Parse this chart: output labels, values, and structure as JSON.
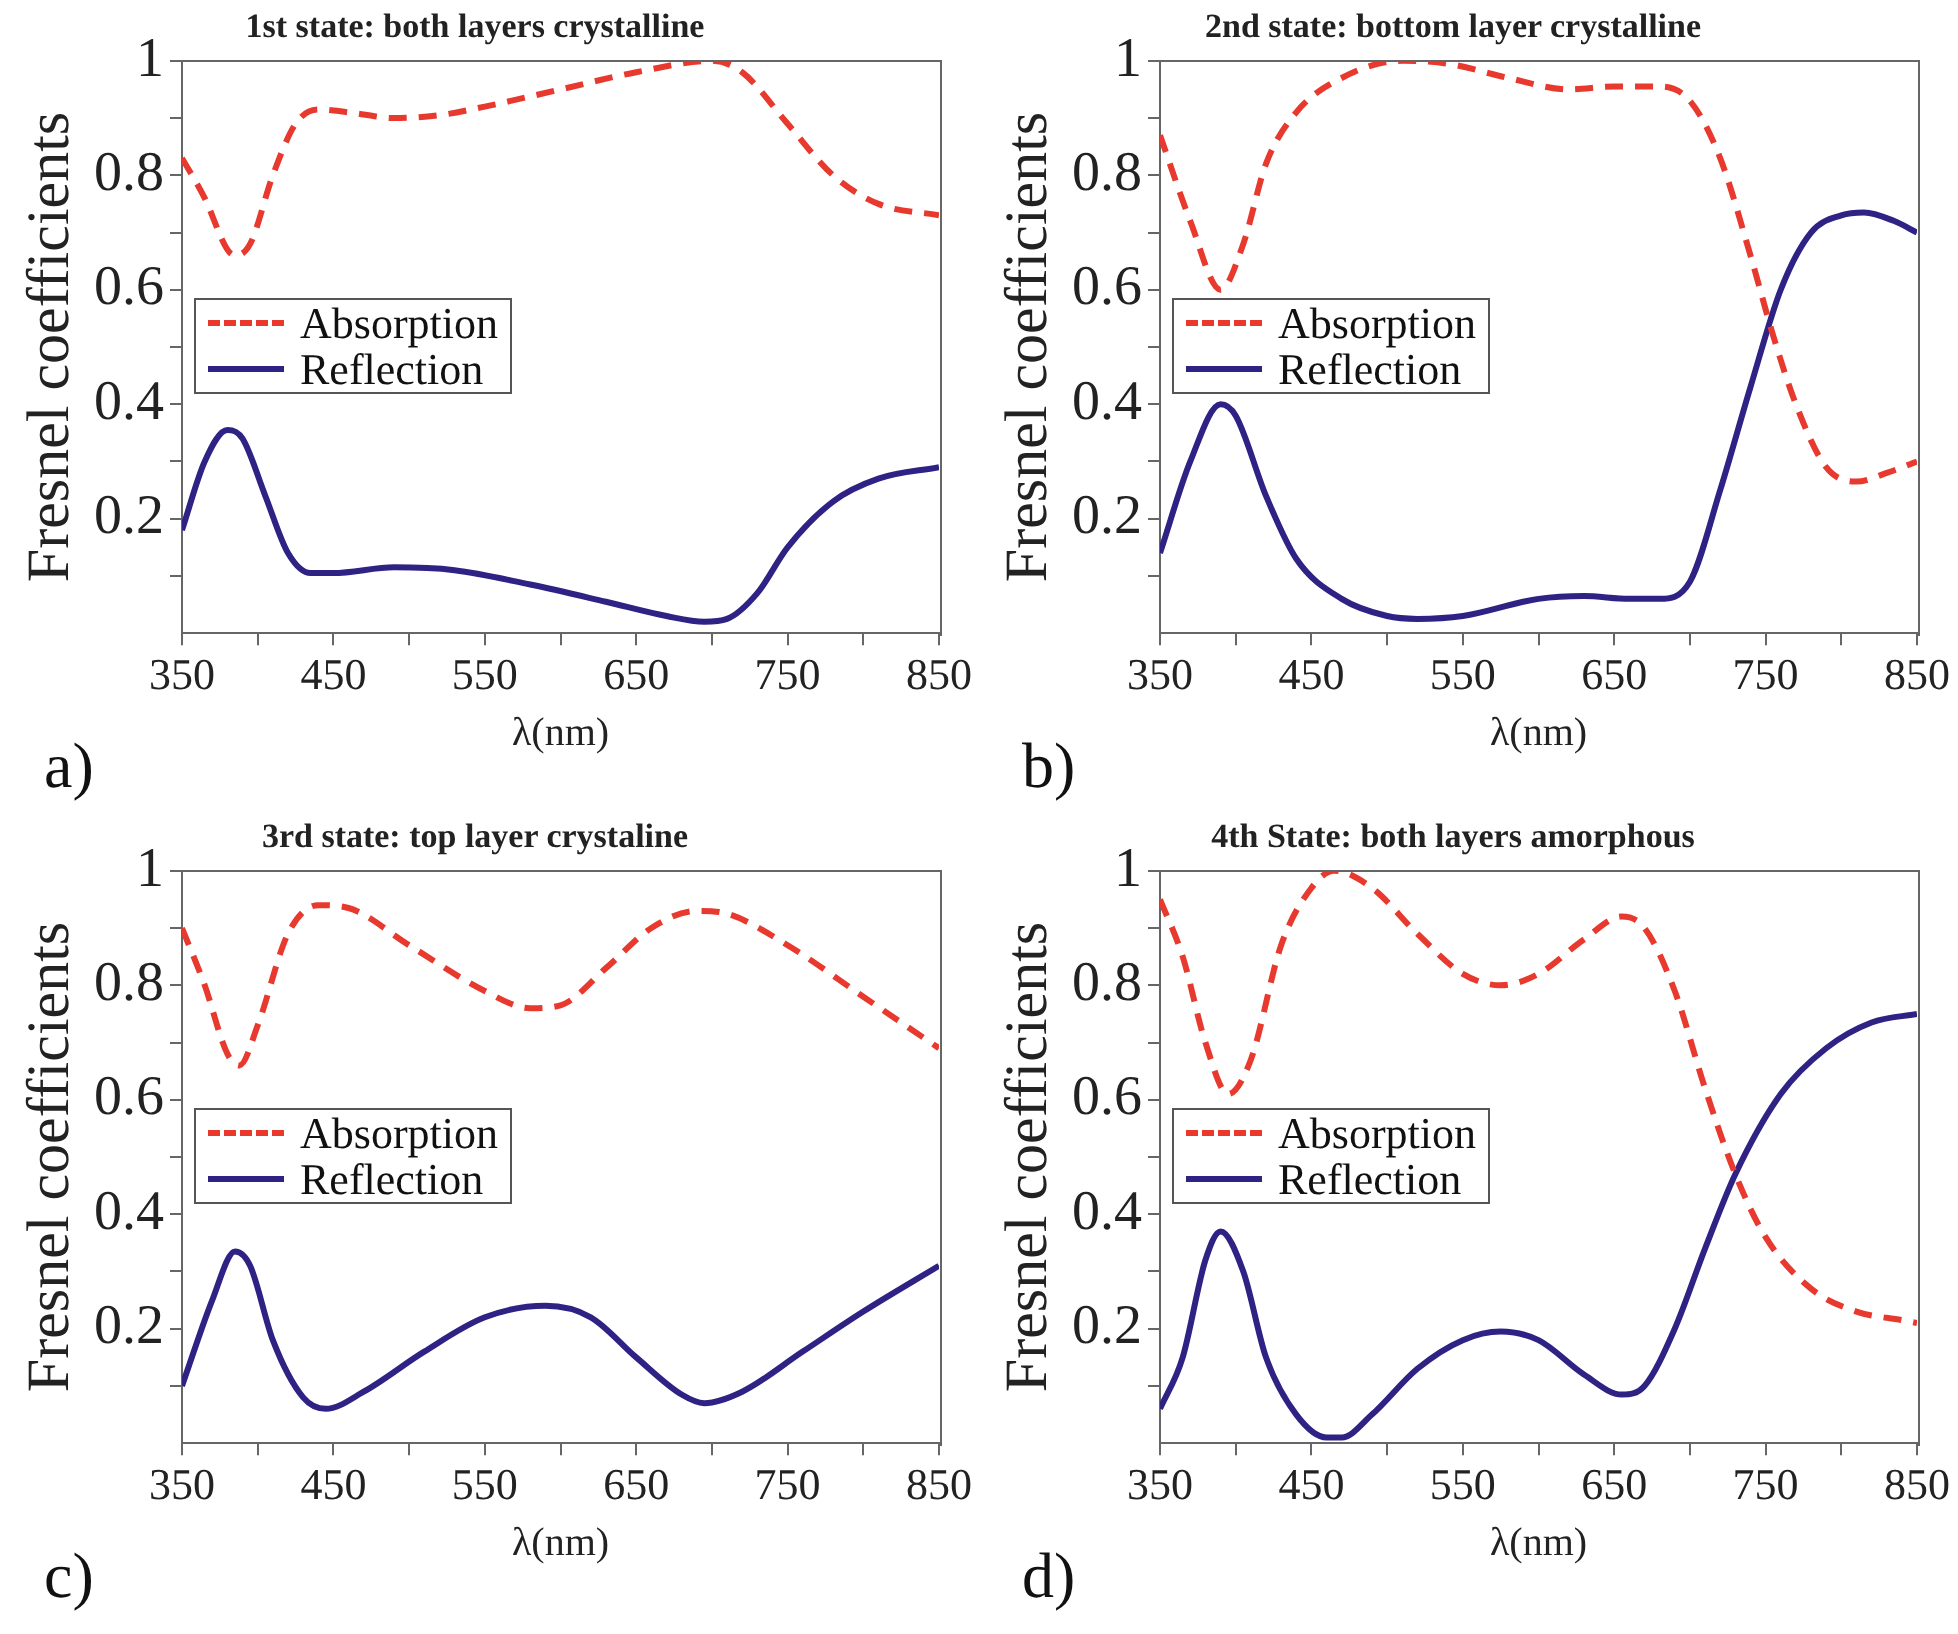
{
  "chart_data": [
    {
      "type": "line",
      "title": "1st state: both layers crystalline",
      "xlabel": "λ(nm)",
      "ylabel": "Fresnel coefficients",
      "annotations": [
        "a)"
      ],
      "legend": "left",
      "xlim": [
        350,
        850
      ],
      "ylim": [
        0,
        1
      ],
      "xticks": [
        350,
        {
          "value": 400,
          "label": null
        },
        450,
        {
          "value": 500,
          "label": null
        },
        550,
        {
          "value": 600,
          "label": null
        },
        650,
        {
          "value": 700,
          "label": null
        },
        750,
        {
          "value": 800,
          "label": null
        },
        850
      ],
      "yticks": [
        {
          "value": 0.1,
          "label": null
        },
        0.2,
        {
          "value": 0.3,
          "label": null
        },
        0.4,
        {
          "value": 0.5,
          "label": null
        },
        0.6,
        {
          "value": 0.7,
          "label": null
        },
        0.8,
        {
          "value": 0.9,
          "label": null
        },
        1
      ],
      "series": [
        {
          "name": "Absorption",
          "color": "#e8392f",
          "line_style": "dashed",
          "x": [
            350,
            365,
            380,
            385,
            395,
            410,
            425,
            440,
            460,
            490,
            520,
            550,
            600,
            650,
            700,
            720,
            750,
            780,
            810,
            850
          ],
          "values": [
            0.83,
            0.76,
            0.67,
            0.66,
            0.68,
            0.8,
            0.89,
            0.915,
            0.91,
            0.9,
            0.905,
            0.92,
            0.95,
            0.98,
            1.0,
            0.98,
            0.89,
            0.8,
            0.75,
            0.73
          ]
        },
        {
          "name": "Reflection",
          "color": "#2e2384",
          "line_style": "solid",
          "x": [
            350,
            365,
            380,
            390,
            405,
            420,
            435,
            450,
            490,
            530,
            580,
            630,
            670,
            695,
            710,
            730,
            750,
            780,
            810,
            850
          ],
          "values": [
            0.18,
            0.3,
            0.355,
            0.34,
            0.24,
            0.14,
            0.105,
            0.105,
            0.115,
            0.11,
            0.085,
            0.055,
            0.03,
            0.02,
            0.025,
            0.07,
            0.15,
            0.23,
            0.27,
            0.29
          ]
        }
      ]
    },
    {
      "type": "line",
      "title": "2nd state: bottom layer crystalline",
      "xlabel": "λ(nm)",
      "ylabel": "Fresnel coefficients",
      "annotations": [
        "b)"
      ],
      "legend": "left",
      "xlim": [
        350,
        850
      ],
      "ylim": [
        0,
        1
      ],
      "xticks": [
        350,
        {
          "value": 400,
          "label": null
        },
        450,
        {
          "value": 500,
          "label": null
        },
        550,
        {
          "value": 600,
          "label": null
        },
        650,
        {
          "value": 700,
          "label": null
        },
        750,
        {
          "value": 800,
          "label": null
        },
        850
      ],
      "yticks": [
        {
          "value": 0.1,
          "label": null
        },
        0.2,
        {
          "value": 0.3,
          "label": null
        },
        0.4,
        {
          "value": 0.5,
          "label": null
        },
        0.6,
        {
          "value": 0.7,
          "label": null
        },
        0.8,
        {
          "value": 0.9,
          "label": null
        },
        1
      ],
      "series": [
        {
          "name": "Absorption",
          "color": "#e8392f",
          "line_style": "dashed",
          "x": [
            350,
            370,
            390,
            405,
            420,
            440,
            470,
            510,
            540,
            580,
            620,
            650,
            680,
            700,
            720,
            740,
            755,
            770,
            790,
            810,
            830,
            850
          ],
          "values": [
            0.87,
            0.72,
            0.6,
            0.68,
            0.82,
            0.91,
            0.97,
            1.0,
            0.995,
            0.97,
            0.95,
            0.955,
            0.955,
            0.93,
            0.83,
            0.66,
            0.52,
            0.4,
            0.29,
            0.265,
            0.28,
            0.3
          ]
        },
        {
          "name": "Reflection",
          "color": "#2e2384",
          "line_style": "solid",
          "x": [
            350,
            370,
            390,
            400,
            420,
            440,
            470,
            500,
            520,
            550,
            600,
            630,
            660,
            680,
            700,
            720,
            740,
            760,
            780,
            800,
            815,
            835,
            850
          ],
          "values": [
            0.14,
            0.3,
            0.4,
            0.38,
            0.24,
            0.13,
            0.06,
            0.03,
            0.025,
            0.03,
            0.06,
            0.065,
            0.06,
            0.06,
            0.09,
            0.25,
            0.43,
            0.6,
            0.7,
            0.73,
            0.735,
            0.72,
            0.7
          ]
        }
      ]
    },
    {
      "type": "line",
      "title": "3rd state: top layer crystaline",
      "xlabel": "λ(nm)",
      "ylabel": "Fresnel coefficients",
      "annotations": [
        "c)"
      ],
      "legend": "left",
      "xlim": [
        350,
        850
      ],
      "ylim": [
        0,
        1
      ],
      "xticks": [
        350,
        {
          "value": 400,
          "label": null
        },
        450,
        {
          "value": 500,
          "label": null
        },
        550,
        {
          "value": 600,
          "label": null
        },
        650,
        {
          "value": 700,
          "label": null
        },
        750,
        {
          "value": 800,
          "label": null
        },
        850
      ],
      "yticks": [
        {
          "value": 0.1,
          "label": null
        },
        0.2,
        {
          "value": 0.3,
          "label": null
        },
        0.4,
        {
          "value": 0.5,
          "label": null
        },
        0.6,
        {
          "value": 0.7,
          "label": null
        },
        0.8,
        {
          "value": 0.9,
          "label": null
        },
        1
      ],
      "series": [
        {
          "name": "Absorption",
          "color": "#e8392f",
          "line_style": "dashed",
          "x": [
            350,
            365,
            380,
            388,
            400,
            420,
            440,
            460,
            500,
            550,
            580,
            600,
            630,
            660,
            690,
            710,
            750,
            800,
            850
          ],
          "values": [
            0.9,
            0.8,
            0.68,
            0.66,
            0.73,
            0.89,
            0.94,
            0.935,
            0.87,
            0.79,
            0.76,
            0.765,
            0.83,
            0.9,
            0.93,
            0.925,
            0.87,
            0.78,
            0.69
          ]
        },
        {
          "name": "Reflection",
          "color": "#2e2384",
          "line_style": "solid",
          "x": [
            350,
            370,
            385,
            395,
            410,
            430,
            445,
            470,
            510,
            550,
            590,
            620,
            650,
            680,
            695,
            720,
            760,
            800,
            850
          ],
          "values": [
            0.1,
            0.25,
            0.335,
            0.31,
            0.18,
            0.08,
            0.06,
            0.09,
            0.16,
            0.22,
            0.24,
            0.22,
            0.15,
            0.085,
            0.07,
            0.09,
            0.16,
            0.23,
            0.31
          ]
        }
      ]
    },
    {
      "type": "line",
      "title": "4th State: both layers amorphous",
      "xlabel": "λ(nm)",
      "ylabel": "Fresnel coefficients",
      "annotations": [
        "d)"
      ],
      "legend": "left",
      "xlim": [
        350,
        850
      ],
      "ylim": [
        0,
        1
      ],
      "xticks": [
        350,
        {
          "value": 400,
          "label": null
        },
        450,
        {
          "value": 500,
          "label": null
        },
        550,
        {
          "value": 600,
          "label": null
        },
        650,
        {
          "value": 700,
          "label": null
        },
        750,
        {
          "value": 800,
          "label": null
        },
        850
      ],
      "yticks": [
        {
          "value": 0.1,
          "label": null
        },
        0.2,
        {
          "value": 0.3,
          "label": null
        },
        0.4,
        {
          "value": 0.5,
          "label": null
        },
        0.6,
        {
          "value": 0.7,
          "label": null
        },
        0.8,
        {
          "value": 0.9,
          "label": null
        },
        1
      ],
      "series": [
        {
          "name": "Absorption",
          "color": "#e8392f",
          "line_style": "dashed",
          "x": [
            350,
            365,
            380,
            395,
            410,
            430,
            450,
            465,
            490,
            520,
            550,
            575,
            600,
            630,
            655,
            670,
            690,
            710,
            730,
            750,
            780,
            810,
            840,
            850
          ],
          "values": [
            0.95,
            0.85,
            0.7,
            0.61,
            0.67,
            0.87,
            0.97,
            1.0,
            0.97,
            0.89,
            0.82,
            0.8,
            0.82,
            0.88,
            0.92,
            0.9,
            0.79,
            0.62,
            0.47,
            0.36,
            0.27,
            0.23,
            0.215,
            0.21
          ]
        },
        {
          "name": "Reflection",
          "color": "#2e2384",
          "line_style": "solid",
          "x": [
            350,
            365,
            380,
            390,
            405,
            420,
            440,
            460,
            470,
            490,
            520,
            550,
            575,
            600,
            630,
            655,
            670,
            690,
            710,
            730,
            760,
            790,
            820,
            850
          ],
          "values": [
            0.06,
            0.15,
            0.32,
            0.37,
            0.3,
            0.15,
            0.05,
            0.01,
            0.01,
            0.05,
            0.13,
            0.18,
            0.195,
            0.18,
            0.12,
            0.085,
            0.1,
            0.2,
            0.34,
            0.47,
            0.61,
            0.69,
            0.735,
            0.75
          ]
        }
      ]
    }
  ]
}
